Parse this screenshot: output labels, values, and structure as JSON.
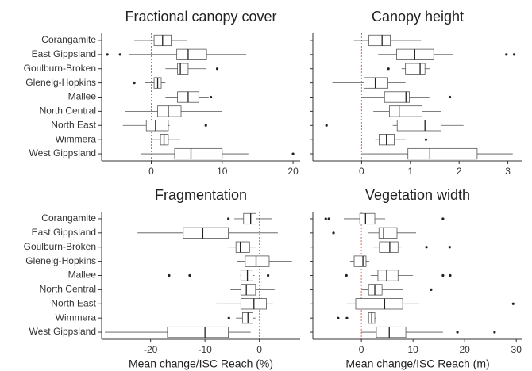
{
  "chart_data": [
    {
      "type": "boxplot",
      "title": "Fractional canopy cover",
      "categories": [
        "Corangamite",
        "East Gippsland",
        "Goulburn-Broken",
        "Glenelg-Hopkins",
        "Mallee",
        "North Central",
        "North East",
        "Wimmera",
        "West Gippsland"
      ],
      "whisker_low": [
        -2.4,
        -3.2,
        2,
        -0.9,
        2,
        -3.7,
        -4,
        0.1,
        -1.4
      ],
      "q1": [
        0.4,
        3.6,
        3.7,
        0.4,
        3.7,
        0.9,
        -0.7,
        1.3,
        3.3
      ],
      "median": [
        1.6,
        5.2,
        4.1,
        0.9,
        5.2,
        2.4,
        0.6,
        1.8,
        5.6
      ],
      "q3": [
        2.8,
        7.8,
        5.2,
        1.4,
        6.7,
        4.2,
        2.4,
        2.4,
        10
      ],
      "whisker_high": [
        5.1,
        13.4,
        7.8,
        2,
        8.1,
        10,
        2.6,
        4.1,
        13.7
      ],
      "outliers": [
        [],
        [
          -6.2,
          -4.4
        ],
        [
          9.3
        ],
        [
          -2.4
        ],
        [
          8.4
        ],
        [],
        [
          7.7
        ],
        [],
        [
          20
        ]
      ],
      "xlim": [
        -7,
        21
      ],
      "xticks": [
        0,
        10,
        20
      ],
      "ref_line": 0,
      "ref_color": "#e06666",
      "color": "#555555"
    },
    {
      "type": "boxplot",
      "title": "Canopy height",
      "whisker_low": [
        -0.16,
        0.34,
        0.82,
        -0.6,
        0,
        0.24,
        0.64,
        0.28,
        0
      ],
      "q1": [
        0.15,
        0.72,
        0.9,
        0.05,
        0.47,
        0.57,
        0.73,
        0.36,
        0.95
      ],
      "median": [
        0.42,
        1.09,
        1.2,
        0.28,
        0.91,
        0.77,
        1.3,
        0.51,
        1.4
      ],
      "q3": [
        0.59,
        1.48,
        1.3,
        0.54,
        0.98,
        1.24,
        1.63,
        0.67,
        2.37
      ],
      "whisker_high": [
        1.22,
        1.88,
        1.4,
        0.9,
        1.39,
        1.63,
        2.09,
        0.9,
        3.1
      ],
      "outliers": [
        [],
        [
          2.97,
          3.13
        ],
        [
          0.55
        ],
        [],
        [
          1.81
        ],
        [],
        [
          -0.72
        ],
        [
          1.32
        ],
        []
      ],
      "xlim": [
        -1,
        3.3
      ],
      "xticks": [
        0,
        1,
        2,
        3
      ],
      "ref_line": 0,
      "ref_color": "#e06666",
      "color": "#555555"
    },
    {
      "type": "boxplot",
      "title": "Fragmentation",
      "x_label": "Mean change/ISC Reach (%)",
      "categories": [
        "Corangamite",
        "East Gippsland",
        "Goulburn-Broken",
        "Glenelg-Hopkins",
        "Mallee",
        "North Central",
        "North East",
        "Wimmera",
        "West Gippsland"
      ],
      "whisker_low": [
        -4.6,
        -22.4,
        -5.7,
        -4.1,
        -3.5,
        -5.3,
        -7.9,
        -4.3,
        -28.4
      ],
      "q1": [
        -2.9,
        -14,
        -4.3,
        -2.6,
        -3.4,
        -3.4,
        -3.4,
        -3.1,
        -16.9
      ],
      "median": [
        -1.6,
        -10.4,
        -3.5,
        -0.6,
        -2.2,
        -2.4,
        -1,
        -2.1,
        -10
      ],
      "q3": [
        -0.6,
        -5.7,
        -1.8,
        1.8,
        -1.2,
        -0.7,
        1.3,
        -1.2,
        -5.7
      ],
      "whisker_high": [
        2.4,
        3.4,
        -0.6,
        6,
        -0.9,
        2.8,
        2.5,
        -0.7,
        -1.6
      ],
      "outliers": [
        [
          -5.7
        ],
        [],
        [],
        [],
        [
          -16.6,
          -12.8,
          1.6
        ],
        [],
        [],
        [
          -5.6
        ],
        []
      ],
      "xlim": [
        -29,
        7.5
      ],
      "xticks": [
        -20,
        -10,
        0
      ],
      "ref_line": 0,
      "ref_color": "#e06666",
      "color": "#555555"
    },
    {
      "type": "boxplot",
      "title": "Vegetation width",
      "x_label": "Mean change/ISC Reach (m)",
      "whisker_low": [
        -3.4,
        1.2,
        2.3,
        -2.2,
        1.8,
        0,
        -2.8,
        1.2,
        0
      ],
      "q1": [
        -0.3,
        3.4,
        3.5,
        -1.4,
        3.2,
        1.4,
        -1.1,
        1.4,
        2.9
      ],
      "median": [
        0.8,
        4.3,
        5.5,
        0.3,
        4.9,
        2.6,
        4.5,
        2,
        5.4
      ],
      "q3": [
        2.6,
        6.9,
        7.1,
        0.9,
        7.1,
        4,
        8,
        2.6,
        8.6
      ],
      "whisker_high": [
        4.6,
        10.6,
        7.7,
        1.5,
        10,
        8,
        11.2,
        2.9,
        15.8
      ],
      "outliers": [
        [
          -6.9,
          -6.3,
          15.8
        ],
        [
          -5.4
        ],
        [
          12.6,
          17.1
        ],
        [],
        [
          -2.9,
          15.8,
          17.2
        ],
        [
          13.5
        ],
        [
          29.4
        ],
        [
          -4.5,
          -2.8
        ],
        [
          18.6,
          25.8
        ]
      ],
      "xlim": [
        -9.4,
        31.2
      ],
      "xticks": [
        0,
        10,
        20,
        30
      ],
      "ref_line": 0,
      "ref_color": "#e06666",
      "color": "#555555"
    }
  ]
}
